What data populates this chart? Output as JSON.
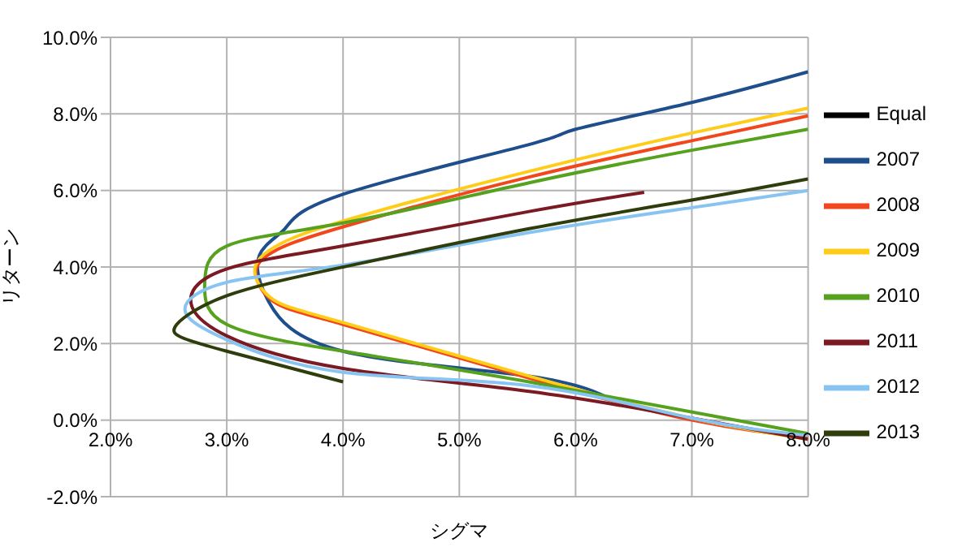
{
  "chart_data": {
    "type": "line",
    "xlabel": "シグマ",
    "ylabel": "リターン",
    "xlim": [
      2,
      8
    ],
    "ylim": [
      -2,
      10
    ],
    "xticks": [
      {
        "value": 2,
        "label": "2.0%"
      },
      {
        "value": 3,
        "label": "3.0%"
      },
      {
        "value": 4,
        "label": "4.0%"
      },
      {
        "value": 5,
        "label": "5.0%"
      },
      {
        "value": 6,
        "label": "6.0%"
      },
      {
        "value": 7,
        "label": "7.0%"
      },
      {
        "value": 8,
        "label": "8.0%"
      }
    ],
    "yticks": [
      {
        "value": -2,
        "label": "-2.0%"
      },
      {
        "value": 0,
        "label": "0.0%"
      },
      {
        "value": 2,
        "label": "2.0%"
      },
      {
        "value": 4,
        "label": "4.0%"
      },
      {
        "value": 6,
        "label": "6.0%"
      },
      {
        "value": 8,
        "label": "8.0%"
      },
      {
        "value": 10,
        "label": "10.0%"
      }
    ],
    "grid": true,
    "legend": "right",
    "marker": "none",
    "line_style": "solid",
    "series": [
      {
        "name": "Equal",
        "color": "#000000"
      },
      {
        "name": "2007",
        "color": "#1f4e8c",
        "x": [
          8.0,
          7.0,
          6.0,
          5.6,
          4.0,
          3.5,
          3.28,
          3.36,
          4.0,
          5.6,
          6.37
        ],
        "values": [
          9.1,
          8.3,
          7.6,
          7.2,
          5.9,
          5.0,
          4.3,
          3.1,
          1.8,
          1.15,
          0.45
        ]
      },
      {
        "name": "2008",
        "color": "#f2471c",
        "x": [
          8.0,
          7.0,
          5.6,
          4.0,
          3.4,
          3.25,
          3.4,
          4.0,
          5.6,
          7.0,
          8.0
        ],
        "values": [
          7.95,
          7.3,
          6.35,
          5.05,
          4.4,
          3.85,
          3.1,
          2.5,
          1.1,
          0.0,
          -0.45
        ]
      },
      {
        "name": "2009",
        "color": "#ffcc1a",
        "x": [
          8.0,
          7.0,
          5.6,
          4.0,
          3.4,
          3.24,
          3.4,
          4.0,
          5.6,
          7.0,
          8.0
        ],
        "values": [
          8.15,
          7.5,
          6.5,
          5.2,
          4.5,
          3.9,
          3.15,
          2.55,
          1.15,
          0.05,
          -0.5
        ]
      },
      {
        "name": "2010",
        "color": "#56a11e",
        "x": [
          8.0,
          7.0,
          5.6,
          4.0,
          3.0,
          2.81,
          3.0,
          4.0,
          5.6,
          8.0
        ],
        "values": [
          7.6,
          7.05,
          6.2,
          5.15,
          4.55,
          3.55,
          2.5,
          1.8,
          1.0,
          -0.35
        ]
      },
      {
        "name": "2011",
        "color": "#7b1a22",
        "x": [
          6.59,
          5.6,
          4.0,
          3.0,
          2.69,
          3.0,
          4.0,
          5.6,
          7.0,
          8.0
        ],
        "values": [
          5.95,
          5.45,
          4.55,
          3.95,
          3.15,
          2.2,
          1.35,
          0.75,
          0.05,
          -0.5
        ]
      },
      {
        "name": "2012",
        "color": "#87c4f2",
        "x": [
          8.0,
          7.0,
          5.6,
          4.0,
          3.0,
          2.64,
          3.0,
          4.0,
          5.6,
          7.0,
          8.0
        ],
        "values": [
          6.0,
          5.55,
          4.9,
          4.05,
          3.6,
          2.9,
          2.1,
          1.25,
          0.9,
          0.05,
          -0.4
        ]
      },
      {
        "name": "2013",
        "color": "#2f3d0c",
        "x": [
          8.0,
          7.0,
          5.6,
          4.0,
          3.0,
          2.57,
          2.62,
          3.0,
          4.0
        ],
        "values": [
          6.3,
          5.75,
          5.0,
          4.0,
          3.25,
          2.5,
          2.15,
          1.8,
          1.0
        ]
      }
    ]
  }
}
